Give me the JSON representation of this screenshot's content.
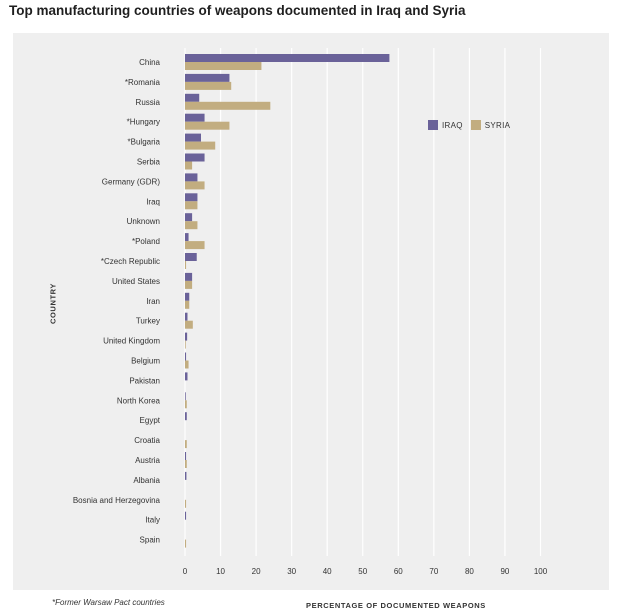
{
  "title": "Top manufacturing countries of weapons documented in Iraq and Syria",
  "footnote": "*Former Warsaw Pact countries",
  "colors": {
    "iraq": "#6a6299",
    "syria": "#c2ad80",
    "grid": "#ffffff",
    "panel": "#efefef"
  },
  "chart_data": {
    "type": "bar",
    "orientation": "horizontal",
    "xlabel": "PERCENTAGE OF DOCUMENTED WEAPONS",
    "ylabel": "COUNTRY",
    "xlim": [
      0,
      100
    ],
    "xticks": [
      0,
      10,
      20,
      30,
      40,
      50,
      60,
      70,
      80,
      90,
      100
    ],
    "grid": true,
    "legend_position": "top-right",
    "categories": [
      "China",
      "*Romania",
      "Russia",
      "*Hungary",
      "*Bulgaria",
      "Serbia",
      "Germany (GDR)",
      "Iraq",
      "Unknown",
      "*Poland",
      "*Czech Republic",
      "United States",
      "Iran",
      "Turkey",
      "United Kingdom",
      "Belgium",
      "Pakistan",
      "North Korea",
      "Egypt",
      "Croatia",
      "Austria",
      "Albania",
      "Bosnia and Herzegovina",
      "Italy",
      "Spain"
    ],
    "series": [
      {
        "name": "IRAQ",
        "values": [
          57.5,
          12.5,
          4,
          5.5,
          4.5,
          5.5,
          3.5,
          3.5,
          2,
          1,
          3.3,
          2,
          1.2,
          0.7,
          0.6,
          0.3,
          0.7,
          0.2,
          0.5,
          0,
          0.3,
          0.4,
          0,
          0.3,
          0
        ]
      },
      {
        "name": "SYRIA",
        "values": [
          21.5,
          13,
          24,
          12.5,
          8.5,
          2,
          5.5,
          3.5,
          3.5,
          5.5,
          0.3,
          2,
          1.2,
          2.2,
          0.2,
          1,
          0,
          0.5,
          0,
          0.5,
          0.5,
          0,
          0.3,
          0,
          0.3
        ]
      }
    ]
  }
}
